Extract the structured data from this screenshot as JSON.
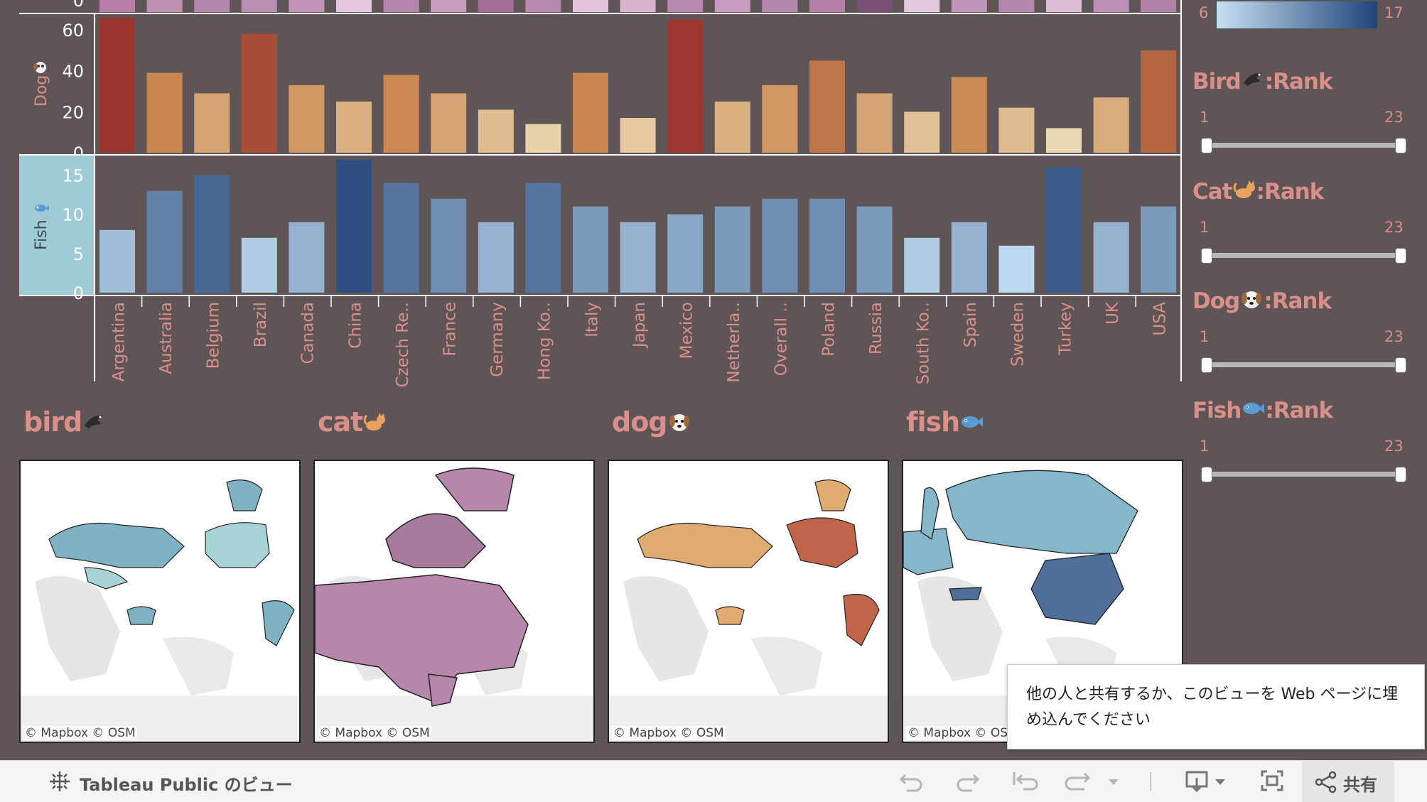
{
  "categories": [
    "Argentina",
    "Australia",
    "Belgium",
    "Brazil",
    "Canada",
    "China",
    "Czech Re..",
    "France",
    "Germany",
    "Hong Ko..",
    "Italy",
    "Japan",
    "Mexico",
    "Netherla..",
    "Overall ..",
    "Poland",
    "Russia",
    "South Ko..",
    "Spain",
    "Sweden",
    "Turkey",
    "UK",
    "USA"
  ],
  "top_strip_tick": "0",
  "dog_axis": {
    "title": "Dog",
    "icon": "dog-emoji-icon",
    "ticks": [
      "60",
      "40",
      "20",
      "0"
    ]
  },
  "fish_axis": {
    "title": "Fish",
    "icon": "fish-emoji-icon",
    "ticks": [
      "15",
      "10",
      "5",
      "0"
    ]
  },
  "color_legend": {
    "min": "6",
    "max": "17",
    "gradient_start": "#c6e0f2",
    "gradient_end": "#20447a"
  },
  "chart_data": [
    {
      "type": "bar",
      "name": "Dog",
      "categories": [
        "Argentina",
        "Australia",
        "Belgium",
        "Brazil",
        "Canada",
        "China",
        "Czech Re..",
        "France",
        "Germany",
        "Hong Ko..",
        "Italy",
        "Japan",
        "Mexico",
        "Netherla..",
        "Overall ..",
        "Poland",
        "Russia",
        "South Ko..",
        "Spain",
        "Sweden",
        "Turkey",
        "UK",
        "USA"
      ],
      "values": [
        66,
        39,
        29,
        58,
        33,
        25,
        38,
        29,
        21,
        14,
        39,
        17,
        65,
        25,
        33,
        45,
        29,
        20,
        37,
        22,
        12,
        27,
        50
      ],
      "ylabel": "Dog",
      "ylim": [
        0,
        68
      ]
    },
    {
      "type": "bar",
      "name": "Fish",
      "categories": [
        "Argentina",
        "Australia",
        "Belgium",
        "Brazil",
        "Canada",
        "China",
        "Czech Re..",
        "France",
        "Germany",
        "Hong Ko..",
        "Italy",
        "Japan",
        "Mexico",
        "Netherla..",
        "Overall ..",
        "Poland",
        "Russia",
        "South Ko..",
        "Spain",
        "Sweden",
        "Turkey",
        "UK",
        "USA"
      ],
      "values": [
        8,
        13,
        15,
        7,
        9,
        17,
        14,
        12,
        9,
        14,
        11,
        9,
        10,
        11,
        12,
        12,
        11,
        7,
        9,
        6,
        16,
        9,
        11
      ],
      "ylabel": "Fish",
      "ylim": [
        0,
        17.5
      ]
    }
  ],
  "maps": [
    {
      "title": "bird",
      "icon": "bird-emoji-icon",
      "credit": "© Mapbox  © OSM"
    },
    {
      "title": "cat",
      "icon": "cat-emoji-icon",
      "credit": "© Mapbox  © OSM"
    },
    {
      "title": "dog",
      "icon": "dog-emoji-icon",
      "credit": "© Mapbox  © OSM"
    },
    {
      "title": "fish",
      "icon": "fish-emoji-icon",
      "credit": "© Mapbox  © OSM"
    }
  ],
  "rank_filters": [
    {
      "prefix": "Bird",
      "suffix": ":Rank",
      "icon": "bird-emoji-icon",
      "min": "1",
      "max": "23"
    },
    {
      "prefix": "Cat",
      "suffix": ":Rank",
      "icon": "cat-emoji-icon",
      "min": "1",
      "max": "23"
    },
    {
      "prefix": "Dog",
      "suffix": ":Rank",
      "icon": "dog-emoji-icon",
      "min": "1",
      "max": "23"
    },
    {
      "prefix": "Fish",
      "suffix": ":Rank",
      "icon": "fish-emoji-icon",
      "min": "1",
      "max": "23"
    }
  ],
  "tooltip": {
    "text": "他の人と共有するか、このビューを Web ページに埋め込んでください"
  },
  "toolbar": {
    "brand": "Tableau Public のビュー",
    "share_label": "共有"
  },
  "colors": {
    "dog_low": "#ecd8b2",
    "dog_high": "#9a3530",
    "fish_low": "#bcd8ee",
    "fish_high": "#2e4f80",
    "text_accent": "#d98f8a"
  }
}
